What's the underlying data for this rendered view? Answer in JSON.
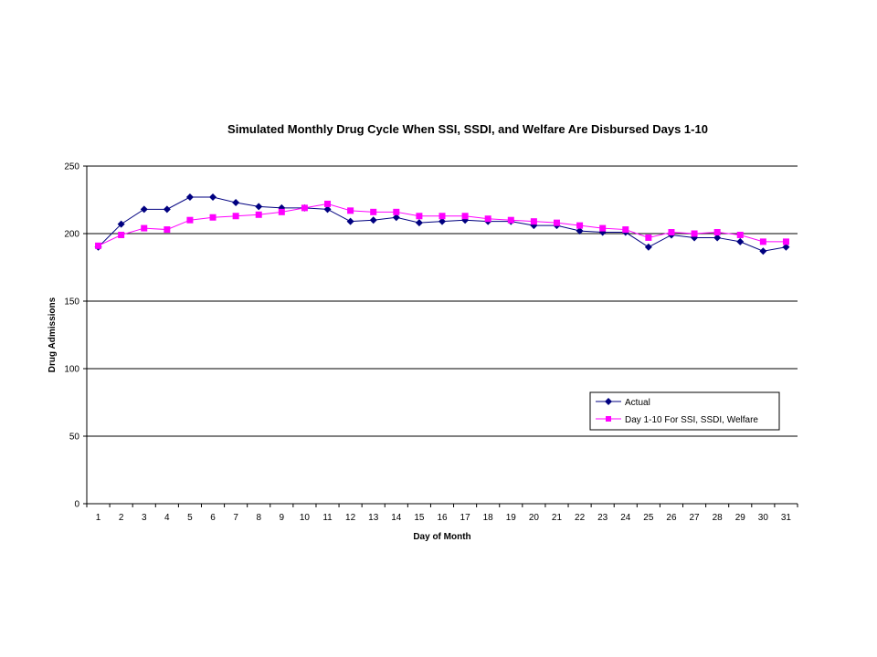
{
  "chart_data": {
    "type": "line",
    "title": "Simulated Monthly Drug Cycle When SSI, SSDI, and Welfare Are Disbursed Days 1-10",
    "xlabel": "Day of Month",
    "ylabel": "Drug Admissions",
    "ylim": [
      0,
      250
    ],
    "yticks": [
      0,
      50,
      100,
      150,
      200,
      250
    ],
    "grid": true,
    "legend_position": "lower-right",
    "x": [
      1,
      2,
      3,
      4,
      5,
      6,
      7,
      8,
      9,
      10,
      11,
      12,
      13,
      14,
      15,
      16,
      17,
      18,
      19,
      20,
      21,
      22,
      23,
      24,
      25,
      26,
      27,
      28,
      29,
      30,
      31
    ],
    "series": [
      {
        "name": "Actual",
        "color": "#000080",
        "marker": "diamond",
        "values": [
          190,
          207,
          218,
          218,
          227,
          227,
          223,
          220,
          219,
          219,
          218,
          209,
          210,
          212,
          208,
          209,
          210,
          209,
          209,
          206,
          206,
          202,
          201,
          201,
          190,
          199,
          197,
          197,
          194,
          187,
          190
        ]
      },
      {
        "name": "Day 1-10 For SSI, SSDI, Welfare",
        "color": "#ff00ff",
        "marker": "square",
        "values": [
          191,
          199,
          204,
          203,
          210,
          212,
          213,
          214,
          216,
          219,
          222,
          217,
          216,
          216,
          213,
          213,
          213,
          211,
          210,
          209,
          208,
          206,
          204,
          203,
          197,
          201,
          200,
          201,
          199,
          194,
          194
        ]
      }
    ]
  }
}
